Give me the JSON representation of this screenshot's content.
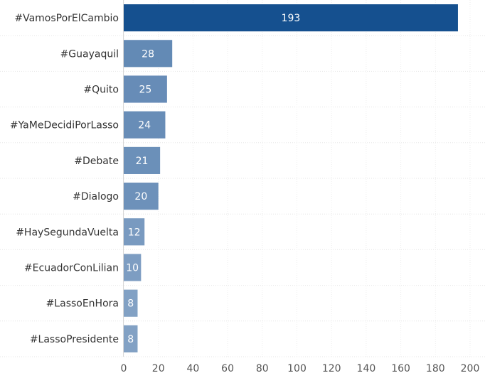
{
  "chart_data": {
    "type": "bar",
    "orientation": "horizontal",
    "categories": [
      "#VamosPorElCambio",
      "#Guayaquil",
      "#Quito",
      "#YaMeDecidiPorLasso",
      "#Debate",
      "#Dialogo",
      "#HaySegundaVuelta",
      "#EcuadorConLilian",
      "#LassoEnHora",
      "#LassoPresidente"
    ],
    "values": [
      193,
      28,
      25,
      24,
      21,
      20,
      12,
      10,
      8,
      8
    ],
    "value_labels": [
      "193",
      "28",
      "25",
      "24",
      "21",
      "20",
      "12",
      "10",
      "8",
      "8"
    ],
    "xlim": [
      0,
      200
    ],
    "x_ticks": [
      "0",
      "20",
      "40",
      "60",
      "80",
      "100",
      "120",
      "140",
      "160",
      "180",
      "200"
    ],
    "title": "",
    "xlabel": "",
    "ylabel": "",
    "grid": true,
    "legend": "none",
    "color_scale": {
      "low": "#bfcee2",
      "high": "#15508f"
    }
  }
}
